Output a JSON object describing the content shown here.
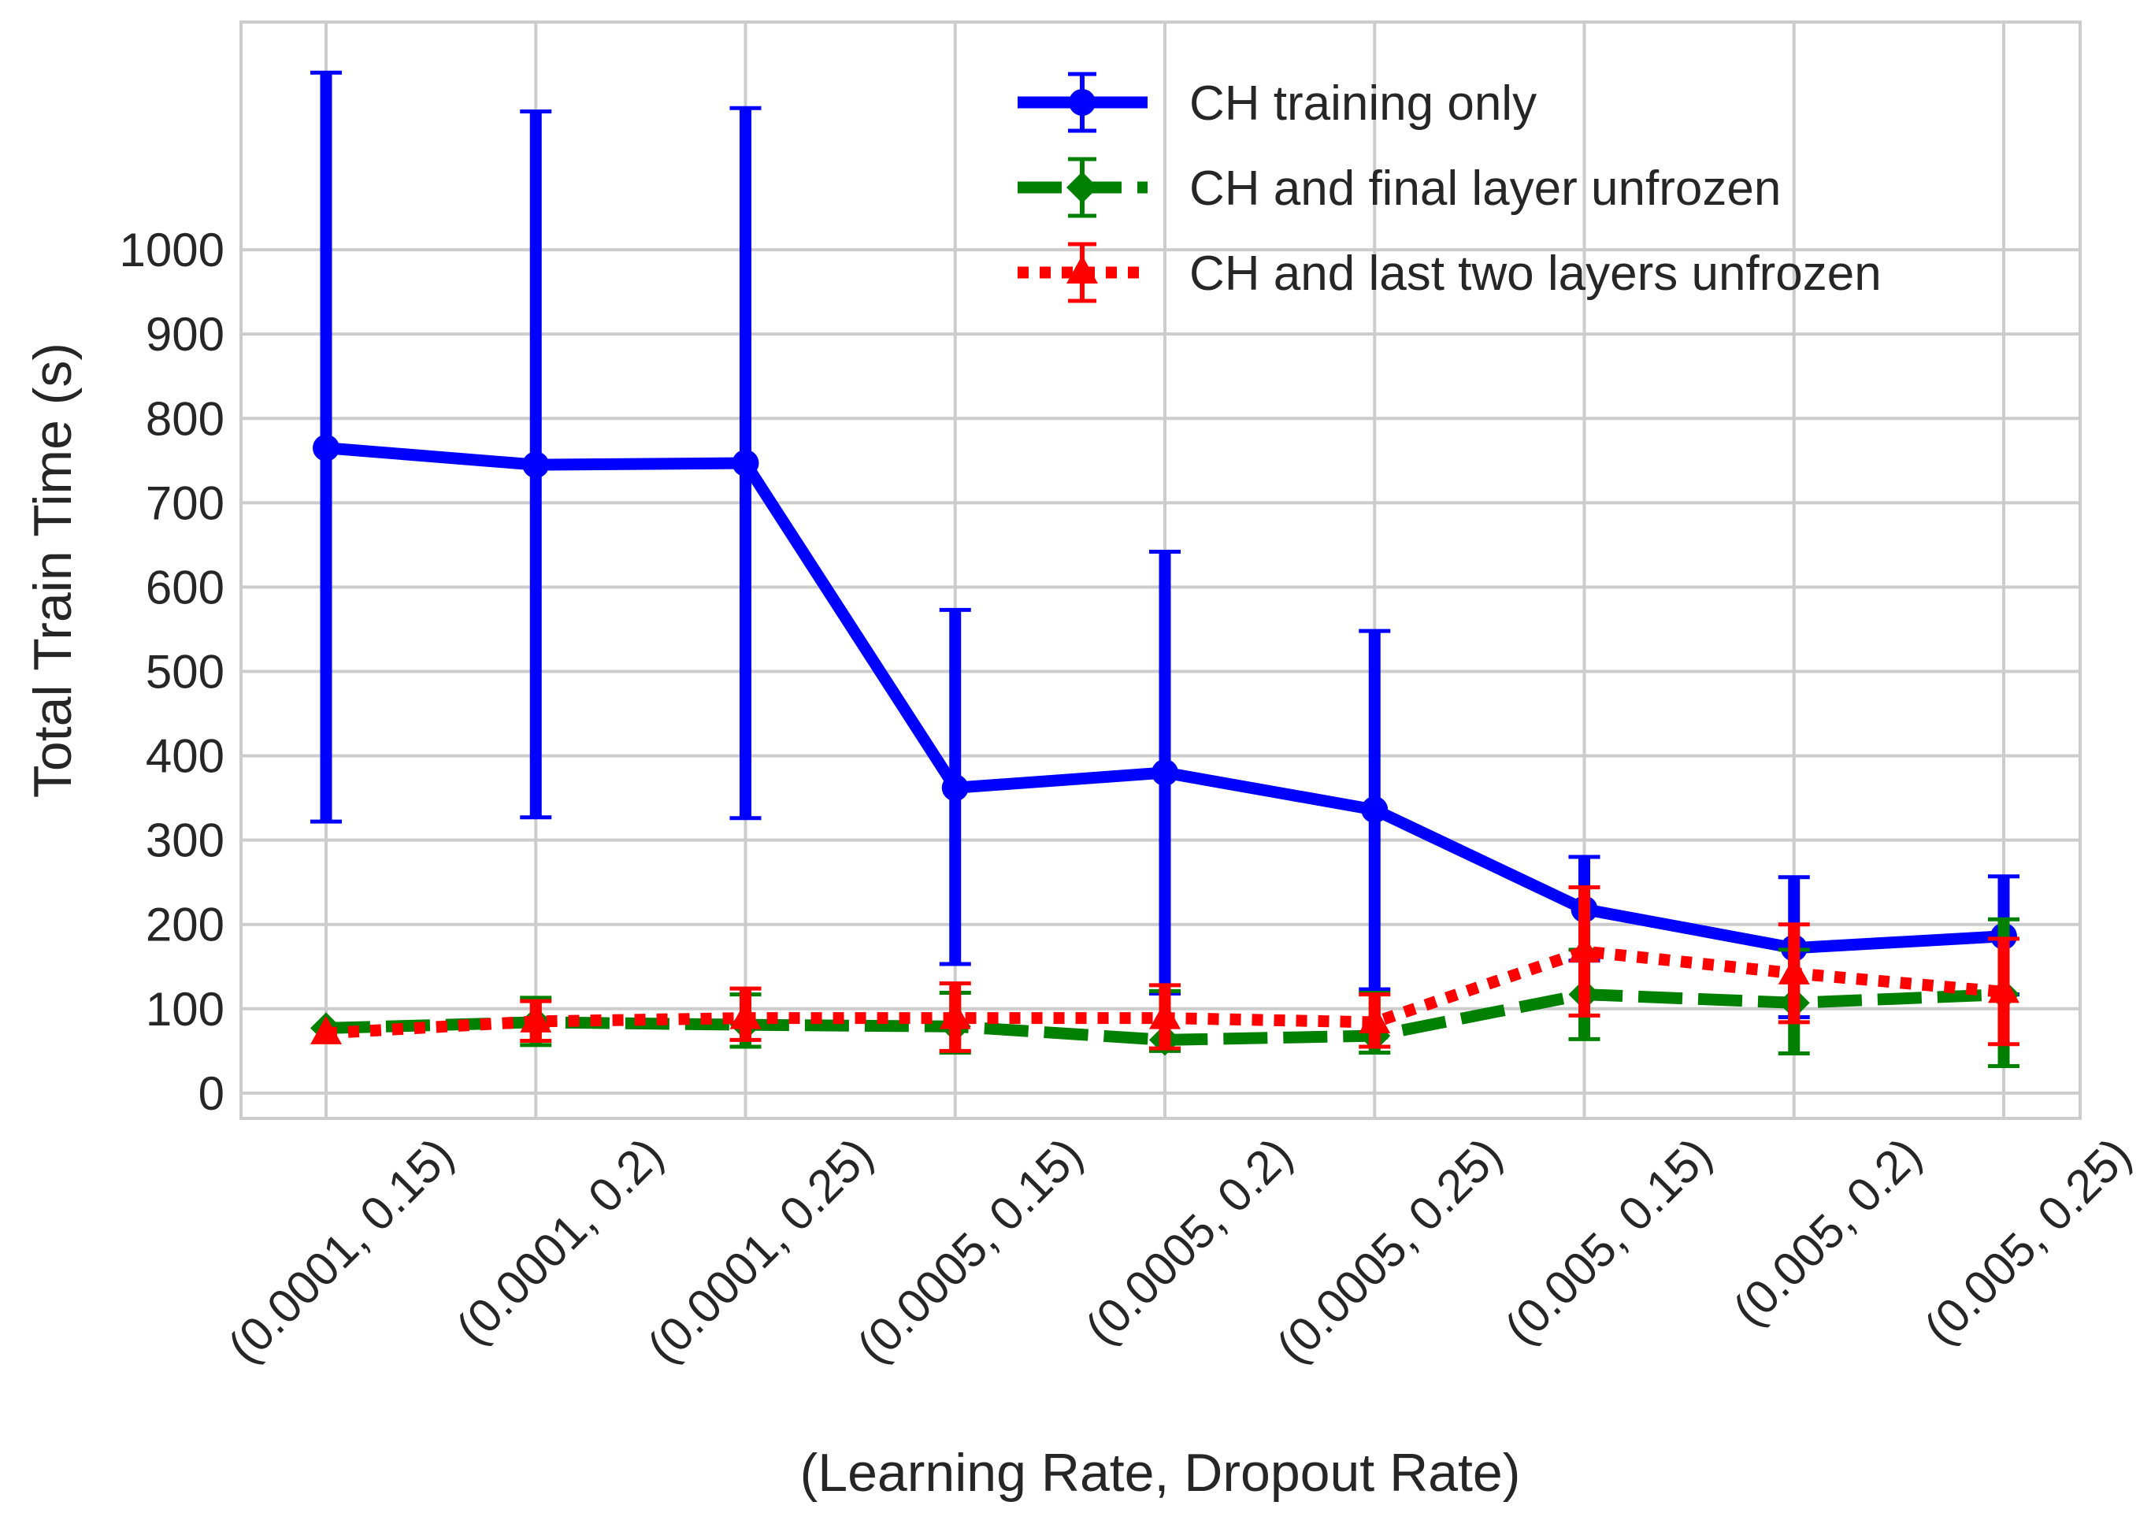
{
  "chart_data": {
    "type": "line",
    "title": "",
    "xlabel": "(Learning Rate, Dropout Rate)",
    "ylabel": "Total Train Time (s)",
    "categories": [
      "(0.0001, 0.15)",
      "(0.0001, 0.2)",
      "(0.0001, 0.25)",
      "(0.0005, 0.15)",
      "(0.0005, 0.2)",
      "(0.0005, 0.25)",
      "(0.005, 0.15)",
      "(0.005, 0.2)",
      "(0.005, 0.25)"
    ],
    "yticks": [
      "0",
      "100",
      "200",
      "300",
      "400",
      "500",
      "600",
      "700",
      "800",
      "900",
      "1000"
    ],
    "ylim": [
      -30,
      1270
    ],
    "grid": true,
    "legend_position": "top-right",
    "series": [
      {
        "name": "CH training only",
        "color": "#0000ff",
        "line_style": "solid",
        "marker": "circle",
        "values": [
          765,
          745,
          747,
          362,
          380,
          336,
          218,
          172,
          186
        ],
        "error_low": [
          322,
          327,
          326,
          153,
          118,
          123,
          157,
          90,
          117
        ],
        "error_high": [
          1210,
          1164,
          1168,
          573,
          642,
          548,
          280,
          256,
          257
        ]
      },
      {
        "name": "CH and final layer unfrozen",
        "color": "#008000",
        "line_style": "dashed",
        "marker": "diamond",
        "values": [
          77,
          84,
          81,
          79,
          63,
          68,
          117,
          107,
          117
        ],
        "error_low": [
          77,
          57,
          55,
          48,
          50,
          48,
          64,
          47,
          32
        ],
        "error_high": [
          77,
          113,
          117,
          119,
          121,
          119,
          170,
          170,
          206
        ]
      },
      {
        "name": "CH and last two layers unfrozen",
        "color": "#ff0000",
        "line_style": "dotted",
        "marker": "triangle",
        "values": [
          71,
          85,
          89,
          89,
          89,
          84,
          168,
          142,
          120
        ],
        "error_low": [
          71,
          62,
          63,
          50,
          53,
          55,
          92,
          84,
          58
        ],
        "error_high": [
          71,
          109,
          124,
          130,
          128,
          117,
          244,
          200,
          183
        ]
      }
    ]
  }
}
